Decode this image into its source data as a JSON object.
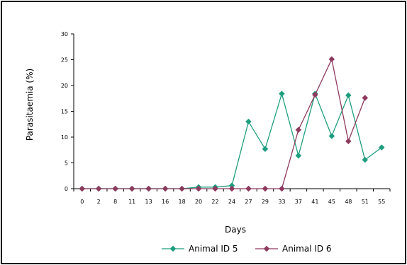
{
  "chart_data": {
    "type": "line",
    "title": "",
    "xlabel": "Days",
    "ylabel": "Parasitaemia (%)",
    "ylim": [
      0,
      30
    ],
    "yticks": [
      0,
      5,
      10,
      15,
      20,
      25,
      30
    ],
    "categories": [
      "0",
      "2",
      "8",
      "11",
      "13",
      "16",
      "18",
      "20",
      "22",
      "24",
      "27",
      "29",
      "33",
      "37",
      "41",
      "45",
      "48",
      "51",
      "55"
    ],
    "grid": false,
    "legend_position": "bottom",
    "series": [
      {
        "name": "Animal ID 5",
        "color": "#1e9e7e",
        "marker": "diamond",
        "values": [
          0,
          0,
          0,
          0,
          0,
          0,
          0,
          0.3,
          0.3,
          0.6,
          13,
          7.7,
          18.4,
          6.4,
          18.4,
          10.2,
          18.1,
          5.6,
          8
        ]
      },
      {
        "name": "Animal ID 6",
        "color": "#8e3a5e",
        "marker": "diamond",
        "values": [
          0,
          0,
          0,
          0,
          0,
          0,
          0,
          0,
          0,
          0,
          0,
          0,
          0,
          11.4,
          18.2,
          25.1,
          9.2,
          17.6,
          null
        ]
      }
    ]
  }
}
